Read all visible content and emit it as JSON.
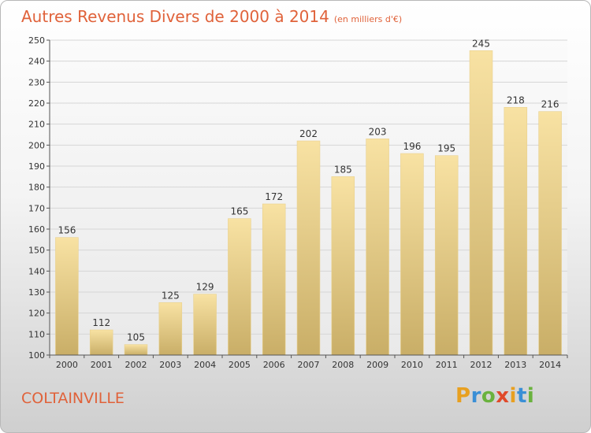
{
  "title": "Autres Revenus Divers de 2000 à 2014",
  "subtitle": "(en milliers d'€)",
  "commune": "COLTAINVILLE",
  "logo": {
    "letters": [
      "P",
      "r",
      "o",
      "x",
      "i",
      "t",
      "i"
    ],
    "colors": [
      "#e8a020",
      "#3a8fd6",
      "#6ab23e",
      "#e04a2a",
      "#e8a020",
      "#3a8fd6",
      "#6ab23e"
    ]
  },
  "colors": {
    "bar_light": "#f8e2a3",
    "bar_dark": "#c9ae67",
    "accent": "#e0623a"
  },
  "chart_data": {
    "type": "bar",
    "title": "Autres Revenus Divers de 2000 à 2014",
    "categories": [
      "2000",
      "2001",
      "2002",
      "2003",
      "2004",
      "2005",
      "2006",
      "2007",
      "2008",
      "2009",
      "2010",
      "2011",
      "2012",
      "2013",
      "2014"
    ],
    "values": [
      156,
      112,
      105,
      125,
      129,
      165,
      172,
      202,
      185,
      203,
      196,
      195,
      245,
      218,
      216
    ],
    "ylim": [
      100,
      250
    ],
    "yticks": [
      100,
      110,
      120,
      130,
      140,
      150,
      160,
      170,
      180,
      190,
      200,
      210,
      220,
      230,
      240,
      250
    ],
    "grid": true
  }
}
